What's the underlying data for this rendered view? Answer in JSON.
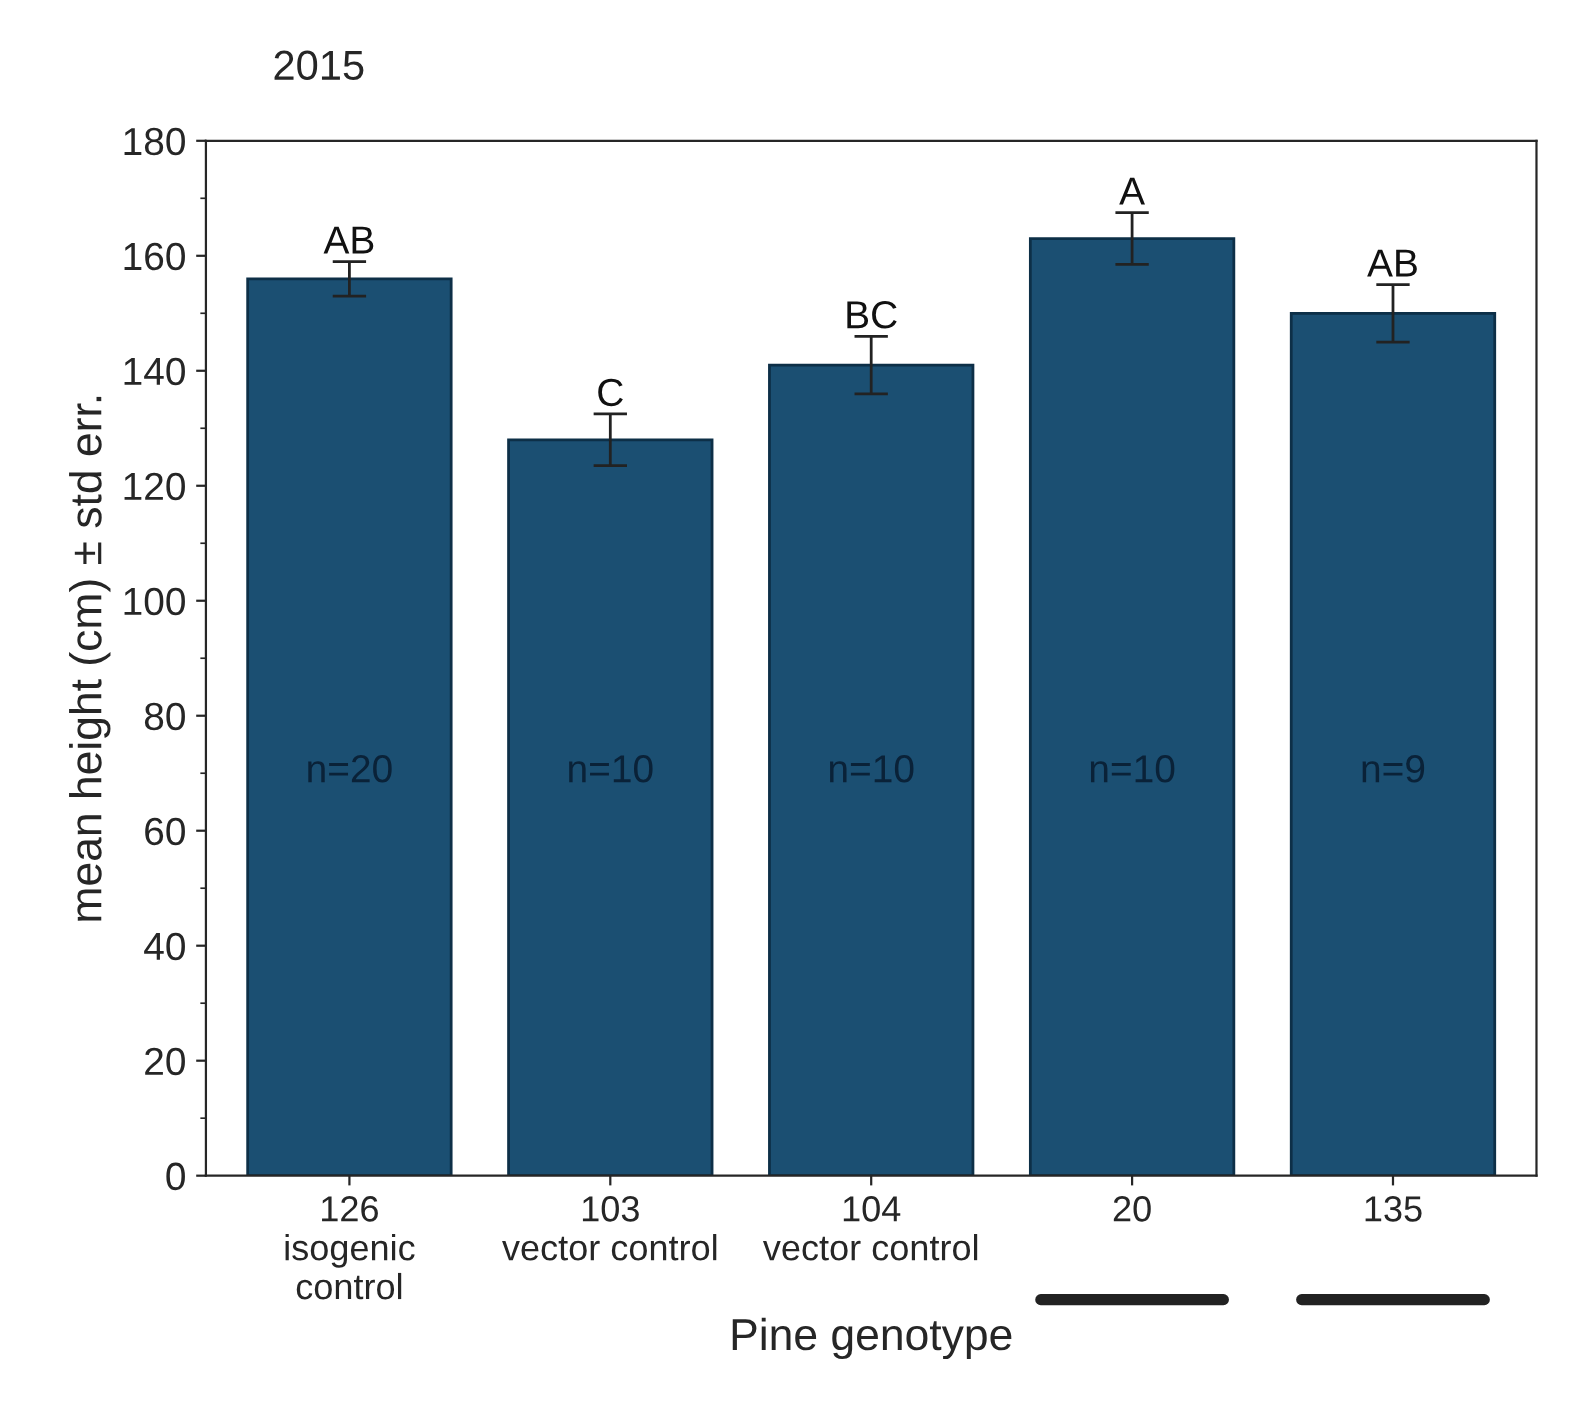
{
  "chart_data": {
    "type": "bar",
    "title": "2015",
    "xlabel": "Pine genotype",
    "ylabel": "mean height (cm) ± std err.",
    "categories": [
      "126\nisogenic\ncontrol",
      "103\nvector control",
      "104\nvector control",
      "20",
      "135"
    ],
    "values": [
      156,
      128,
      141,
      163,
      150
    ],
    "errors": [
      3,
      4.5,
      5,
      4.5,
      5
    ],
    "color": "#1b4f72",
    "ylim": [
      0,
      180
    ],
    "yticks": [
      0,
      20,
      40,
      60,
      80,
      100,
      120,
      140,
      160,
      180
    ],
    "annotations": [
      {
        "text": "AB",
        "x": "126\nisogenic\ncontrol",
        "y": 159
      },
      {
        "text": "C",
        "x": "103\nvector control",
        "y": 132.5
      },
      {
        "text": "BC",
        "x": "104\nvector control",
        "y": 146
      },
      {
        "text": "A",
        "x": "20",
        "y": 167.5
      },
      {
        "text": "AB",
        "x": "135",
        "y": 155
      },
      "n=20",
      "n=10",
      "n=10",
      "n=10",
      "n=9"
    ]
  }
}
